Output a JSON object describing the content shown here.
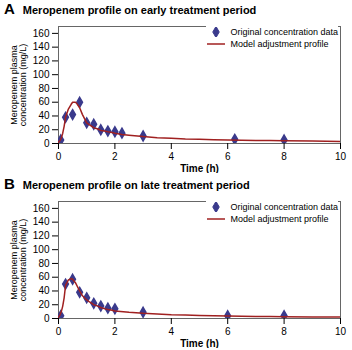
{
  "chart_data": [
    {
      "type": "scatter",
      "title": "Meropenem profile on early treatment period",
      "annotations": [
        "A"
      ],
      "xlabel": "Time (h)",
      "ylabel": "Meropenem plasma\nconcentration (mg/L)",
      "xlim": [
        0,
        10
      ],
      "xticks": [
        0,
        2,
        4,
        6,
        8,
        10
      ],
      "ylim": [
        0,
        170
      ],
      "yticks": [
        0,
        20,
        40,
        60,
        80,
        100,
        120,
        140,
        160
      ],
      "grid": false,
      "legend": "right",
      "series": [
        {
          "name": "Original concentration data",
          "type": "scatter",
          "color": "#3a3a8c",
          "marker": "diamond",
          "x": [
            0.08,
            0.25,
            0.5,
            0.75,
            1.0,
            1.25,
            1.5,
            1.75,
            2.0,
            2.25,
            3.0,
            6.25,
            8.0
          ],
          "values": [
            5,
            38,
            42,
            60,
            30,
            28,
            20,
            18,
            17,
            15,
            11,
            6,
            5
          ]
        },
        {
          "name": "Model adjustment profile",
          "type": "line",
          "color": "#a02020",
          "line_style": "solid",
          "x": [
            0.0,
            0.05,
            0.1,
            0.15,
            0.2,
            0.25,
            0.35,
            0.45,
            0.5,
            0.6,
            0.65,
            0.75,
            0.85,
            1.0,
            1.1,
            1.25,
            1.4,
            1.5,
            1.65,
            1.75,
            1.9,
            2.0,
            2.25,
            2.5,
            3.0,
            3.5,
            4.0,
            4.5,
            5.0,
            5.5,
            6.0,
            6.5,
            7.0,
            7.5,
            8.0,
            9.0,
            10.0
          ],
          "values": [
            2,
            4,
            8,
            15,
            25,
            38,
            50,
            57,
            60,
            60,
            58,
            52,
            42,
            30,
            27,
            23,
            21,
            19,
            18,
            17,
            16,
            15,
            13,
            12,
            10,
            8.5,
            7.5,
            6.5,
            6.0,
            5.5,
            5.2,
            4.8,
            4.5,
            4.2,
            4.0,
            3.5,
            3.0
          ]
        }
      ]
    },
    {
      "type": "scatter",
      "title": "Meropenem profile on late treatment period",
      "annotations": [
        "B"
      ],
      "xlabel": "Time (h)",
      "ylabel": "Meropenem plasma\nconcentration (mg/L)",
      "xlim": [
        0,
        10
      ],
      "xticks": [
        0,
        2,
        4,
        6,
        8,
        10
      ],
      "ylim": [
        0,
        170
      ],
      "yticks": [
        0,
        20,
        40,
        60,
        80,
        100,
        120,
        140,
        160
      ],
      "grid": false,
      "legend": "right",
      "series": [
        {
          "name": "Original concentration data",
          "type": "scatter",
          "color": "#3a3a8c",
          "marker": "diamond",
          "x": [
            0.08,
            0.25,
            0.5,
            0.75,
            1.0,
            1.25,
            1.5,
            1.75,
            2.0,
            3.0,
            6.0,
            8.0
          ],
          "values": [
            4,
            50,
            57,
            38,
            30,
            22,
            18,
            15,
            14,
            9,
            4,
            4
          ]
        },
        {
          "name": "Model adjustment profile",
          "type": "line",
          "color": "#a02020",
          "line_style": "solid",
          "x": [
            0.0,
            0.05,
            0.1,
            0.15,
            0.2,
            0.25,
            0.35,
            0.45,
            0.5,
            0.6,
            0.75,
            0.85,
            1.0,
            1.1,
            1.25,
            1.4,
            1.5,
            1.65,
            1.75,
            1.9,
            2.0,
            2.5,
            3.0,
            3.5,
            4.0,
            4.5,
            5.0,
            5.5,
            6.0,
            6.5,
            7.0,
            7.5,
            8.0,
            9.0,
            10.0
          ],
          "values": [
            2,
            5,
            10,
            18,
            30,
            48,
            56,
            58,
            57,
            52,
            40,
            33,
            27,
            24,
            20,
            18,
            16,
            14,
            13,
            12,
            11,
            9,
            7.5,
            6.5,
            5.5,
            5.0,
            4.5,
            4.0,
            3.5,
            3.2,
            3.0,
            2.8,
            2.6,
            2.2,
            2.0
          ]
        }
      ]
    }
  ]
}
